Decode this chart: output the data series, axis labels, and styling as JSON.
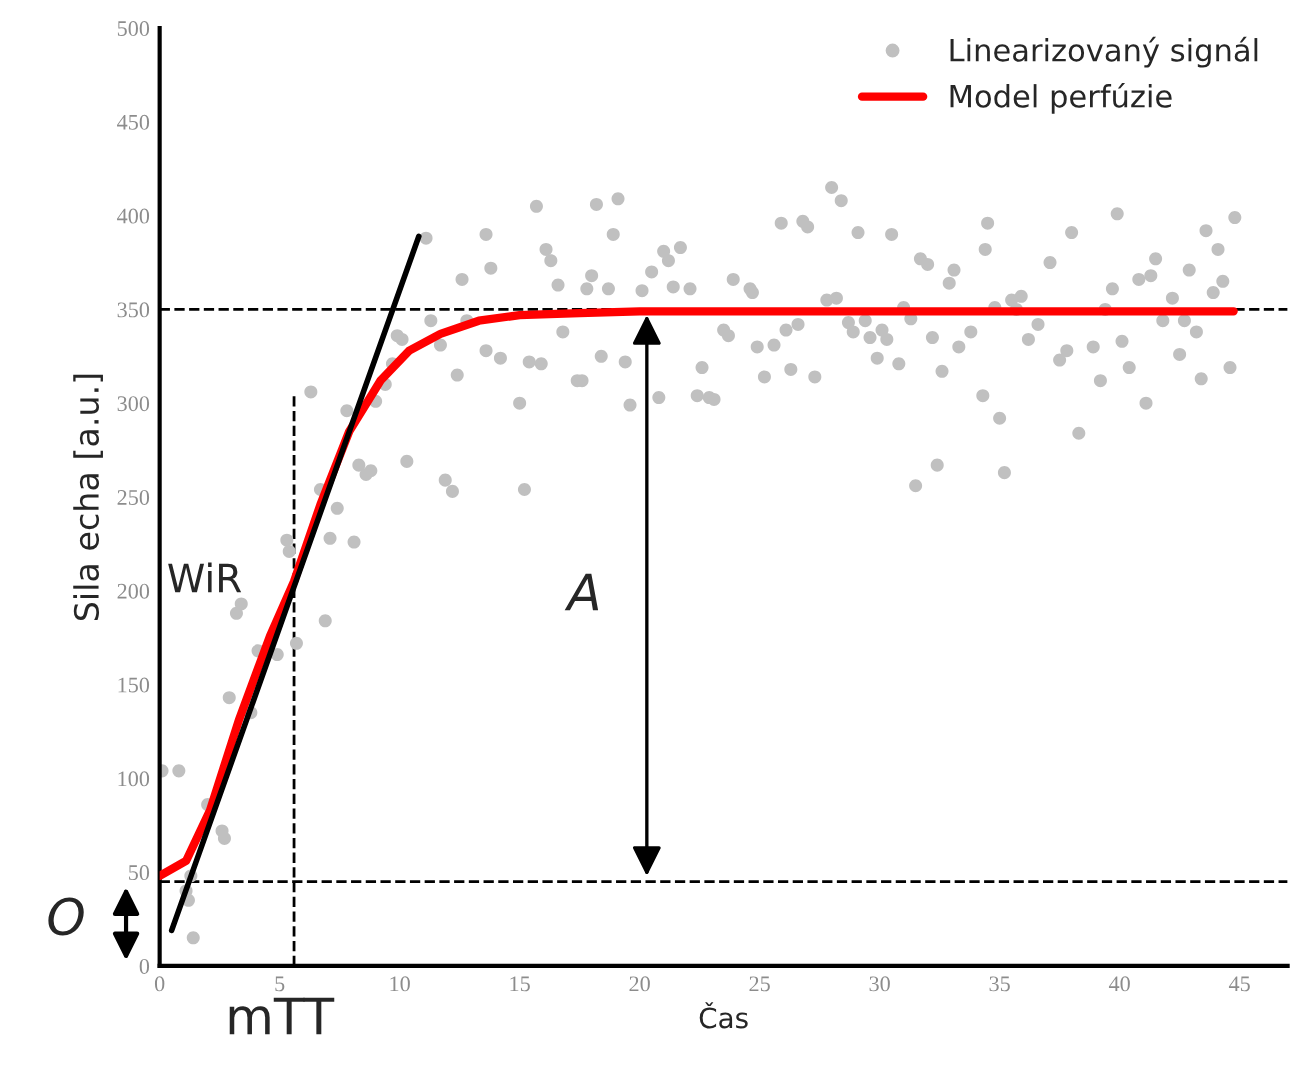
{
  "chart_data": {
    "type": "scatter",
    "xlabel": "Čas",
    "ylabel": "Sila echa [a.u.]",
    "xlim": [
      0,
      47
    ],
    "ylim": [
      0,
      500
    ],
    "xticks": [
      0,
      5,
      10,
      15,
      20,
      25,
      30,
      35,
      40,
      45
    ],
    "yticks": [
      0,
      50,
      100,
      150,
      200,
      250,
      300,
      350,
      400,
      450,
      500
    ],
    "grid": false,
    "legend": "top right",
    "annotations": [
      "WiR",
      "A",
      "O",
      "mTT"
    ],
    "ref_lines": [
      {
        "axis": "y",
        "value": 350,
        "color": "#000000",
        "line_style": "dashed"
      },
      {
        "axis": "y",
        "value": 45,
        "color": "#000000",
        "line_style": "dashed"
      },
      {
        "axis": "x",
        "value": 5.6,
        "color": "#000000",
        "line_style": "dashed"
      }
    ],
    "series": [
      {
        "name": "Linearizovaný signál",
        "color": "#c0c0c0",
        "marker": "circle",
        "x": [
          15.7,
          18.2,
          19.1,
          18.9,
          13.6,
          16.1,
          16.3,
          13.8,
          12.6,
          16.6,
          17.8,
          18.0,
          18.7,
          20.1,
          20.5,
          21.0,
          21.2,
          21.7,
          21.4,
          22.1,
          23.9,
          24.6,
          11.1,
          11.3,
          12.8,
          9.9,
          10.1,
          11.7,
          13.6,
          14.2,
          15.4,
          15.9,
          16.8,
          18.4,
          19.4,
          17.4,
          17.6,
          12.4,
          9.7,
          9.4,
          6.3,
          9.0,
          7.8,
          15.0,
          19.6,
          20.8,
          22.4,
          22.9,
          23.1,
          22.6,
          23.7,
          23.5,
          10.3,
          8.3,
          8.6,
          8.8,
          11.9,
          12.2,
          15.2,
          6.7,
          7.4,
          7.1,
          8.1,
          5.3,
          5.4,
          6.9,
          3.2,
          3.4,
          5.7,
          4.9,
          4.1,
          2.9,
          3.8,
          0.1,
          0.8,
          2.0,
          2.6,
          2.7,
          1.3,
          1.1,
          1.2,
          1.4,
          28.0,
          28.4,
          25.9,
          26.8,
          27.0,
          29.1,
          30.5,
          34.5,
          39.9,
          44.8,
          43.6,
          44.1,
          38.0,
          34.4,
          31.7,
          32.0,
          33.1,
          32.9,
          37.1,
          41.5,
          40.8,
          41.3,
          42.9,
          39.7,
          44.3,
          43.9,
          24.7,
          27.8,
          28.2,
          31.0,
          34.8,
          35.5,
          35.9,
          35.7,
          42.2,
          39.4,
          26.1,
          26.6,
          24.9,
          25.6,
          25.2,
          26.3,
          27.3,
          28.7,
          28.9,
          29.6,
          30.1,
          30.3,
          29.9,
          30.8,
          32.2,
          33.3,
          33.8,
          32.6,
          34.3,
          35.0,
          32.4,
          31.5,
          35.2,
          38.3,
          36.2,
          36.6,
          37.5,
          37.8,
          38.9,
          39.2,
          40.1,
          40.4,
          41.1,
          42.5,
          43.2,
          43.4,
          44.6,
          41.8,
          42.7,
          29.4,
          31.3
        ],
        "values": [
          405,
          406,
          409,
          390,
          390,
          382,
          376,
          372,
          366,
          363,
          361,
          368,
          361,
          360,
          370,
          381,
          376,
          383,
          362,
          361,
          366,
          361,
          388,
          344,
          344,
          336,
          334,
          331,
          328,
          324,
          322,
          321,
          338,
          325,
          322,
          312,
          312,
          315,
          321,
          310,
          306,
          301,
          296,
          300,
          299,
          303,
          304,
          303,
          302,
          319,
          336,
          339,
          269,
          267,
          262,
          264,
          259,
          253,
          254,
          254,
          244,
          228,
          226,
          227,
          221,
          184,
          188,
          193,
          172,
          166,
          168,
          143,
          135,
          104,
          104,
          86,
          72,
          68,
          48,
          40,
          35,
          15,
          415,
          408,
          396,
          397,
          394,
          391,
          390,
          396,
          401,
          399,
          392,
          382,
          391,
          382,
          377,
          374,
          371,
          364,
          375,
          377,
          366,
          368,
          371,
          361,
          365,
          359,
          359,
          355,
          356,
          351,
          351,
          355,
          357,
          350,
          356,
          350,
          339,
          342,
          330,
          331,
          314,
          318,
          314,
          343,
          338,
          335,
          339,
          334,
          324,
          321,
          335,
          330,
          338,
          317,
          304,
          292,
          267,
          256,
          263,
          284,
          334,
          342,
          323,
          328,
          330,
          312,
          333,
          319,
          300,
          326,
          338,
          313,
          319,
          344,
          344,
          344,
          345
        ]
      },
      {
        "name": "Model perfúzie",
        "type": "line",
        "color": "#ff0000",
        "marker": "none",
        "line_style": "solid",
        "x": [
          0,
          1.1,
          2.1,
          3.3,
          4.6,
          5.6,
          6.7,
          7.9,
          9.2,
          10.4,
          11.7,
          13.3,
          15,
          17.5,
          20,
          44.75
        ],
        "values": [
          48,
          56,
          83,
          131,
          176,
          205,
          246,
          285,
          312,
          328,
          337,
          344,
          347,
          348,
          349,
          349
        ]
      },
      {
        "type": "line",
        "color": "#000000",
        "marker": "none",
        "line_style": "solid",
        "x": [
          0.5,
          10.8
        ],
        "values": [
          19,
          389
        ]
      }
    ]
  }
}
